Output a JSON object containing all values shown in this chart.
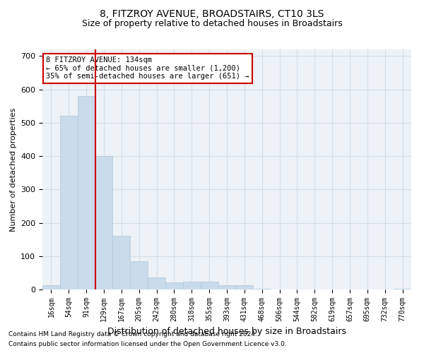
{
  "title": "8, FITZROY AVENUE, BROADSTAIRS, CT10 3LS",
  "subtitle": "Size of property relative to detached houses in Broadstairs",
  "xlabel": "Distribution of detached houses by size in Broadstairs",
  "ylabel": "Number of detached properties",
  "bar_color": "#c9daea",
  "bar_edgecolor": "#b0c8dc",
  "grid_color": "#d4dfe8",
  "background_color": "#edf2f7",
  "vline_color": "#cc0000",
  "vline_bin_index": 3,
  "annotation_text": "8 FITZROY AVENUE: 134sqm\n← 65% of detached houses are smaller (1,200)\n35% of semi-detached houses are larger (651) →",
  "annotation_box_facecolor": "#ffffff",
  "annotation_border_color": "#cc0000",
  "categories": [
    "16sqm",
    "54sqm",
    "91sqm",
    "129sqm",
    "167sqm",
    "205sqm",
    "242sqm",
    "280sqm",
    "318sqm",
    "355sqm",
    "393sqm",
    "431sqm",
    "468sqm",
    "506sqm",
    "544sqm",
    "582sqm",
    "619sqm",
    "657sqm",
    "695sqm",
    "732sqm",
    "770sqm"
  ],
  "values": [
    13,
    520,
    580,
    400,
    160,
    85,
    35,
    22,
    24,
    24,
    13,
    13,
    3,
    0,
    0,
    0,
    0,
    0,
    0,
    0,
    2
  ],
  "ylim": [
    0,
    720
  ],
  "yticks": [
    0,
    100,
    200,
    300,
    400,
    500,
    600,
    700
  ],
  "title_fontsize": 10,
  "subtitle_fontsize": 9,
  "ylabel_fontsize": 8,
  "xlabel_fontsize": 9,
  "tick_fontsize": 8,
  "xtick_fontsize": 7,
  "footer_line1": "Contains HM Land Registry data © Crown copyright and database right 2024.",
  "footer_line2": "Contains public sector information licensed under the Open Government Licence v3.0.",
  "footer_fontsize": 6.5
}
